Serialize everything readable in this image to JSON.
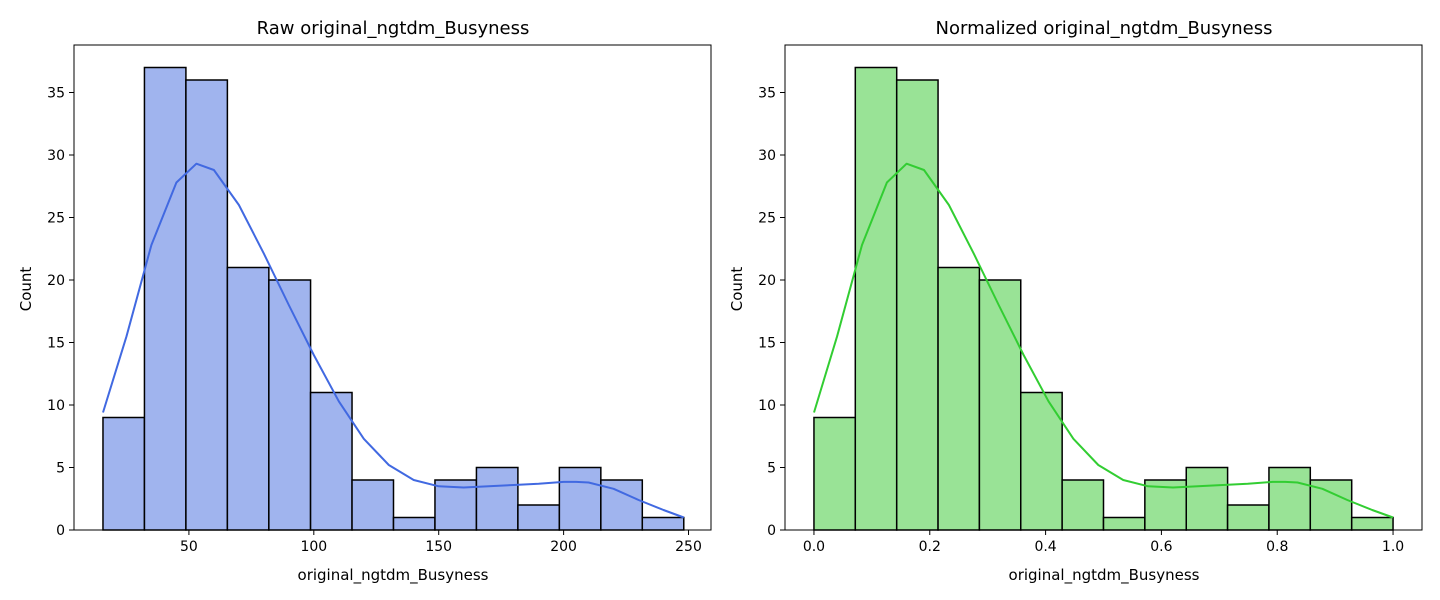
{
  "chart_data": [
    {
      "type": "bar",
      "subtype": "histogram_with_kde",
      "title": "Raw original_ngtdm_Busyness",
      "xlabel": "original_ngtdm_Busyness",
      "ylabel": "Count",
      "xlim": [
        4,
        259
      ],
      "ylim": [
        0,
        38.8
      ],
      "xticks": [
        50,
        100,
        150,
        200,
        250
      ],
      "xtick_labels": [
        "50",
        "100",
        "150",
        "200",
        "250"
      ],
      "yticks": [
        0,
        5,
        10,
        15,
        20,
        25,
        30,
        35
      ],
      "ytick_labels": [
        "0",
        "5",
        "10",
        "15",
        "20",
        "25",
        "30",
        "35"
      ],
      "bin_edges": [
        15.6,
        32.2,
        48.8,
        65.4,
        82.0,
        98.7,
        115.3,
        131.9,
        148.5,
        165.1,
        181.7,
        198.3,
        214.9,
        231.5,
        248.1
      ],
      "counts": [
        9,
        37,
        36,
        21,
        20,
        11,
        4,
        1,
        4,
        5,
        2,
        5,
        4,
        1
      ],
      "kde": {
        "x": [
          15.6,
          25,
          35,
          45,
          53,
          60,
          70,
          80,
          90,
          100,
          110,
          120,
          130,
          140,
          150,
          160,
          170,
          180,
          190,
          200,
          205,
          210,
          220,
          230,
          240,
          248.1
        ],
        "y": [
          9.4,
          15.5,
          22.8,
          27.8,
          29.3,
          28.8,
          26.0,
          22.1,
          18.0,
          14.0,
          10.3,
          7.3,
          5.2,
          4.0,
          3.5,
          3.4,
          3.5,
          3.6,
          3.7,
          3.85,
          3.85,
          3.8,
          3.3,
          2.4,
          1.6,
          1.0
        ]
      },
      "colors": {
        "bar_fill": "#a0b4ee",
        "bar_edge": "#000000",
        "kde_line": "#4169e1"
      },
      "grid": false,
      "legend": false
    },
    {
      "type": "bar",
      "subtype": "histogram_with_kde",
      "title": "Normalized original_ngtdm_Busyness",
      "xlabel": "original_ngtdm_Busyness",
      "ylabel": "Count",
      "xlim": [
        -0.05,
        1.05
      ],
      "ylim": [
        0,
        38.8
      ],
      "xticks": [
        0.0,
        0.2,
        0.4,
        0.6,
        0.8,
        1.0
      ],
      "xtick_labels": [
        "0.0",
        "0.2",
        "0.4",
        "0.6",
        "0.8",
        "1.0"
      ],
      "yticks": [
        0,
        5,
        10,
        15,
        20,
        25,
        30,
        35
      ],
      "ytick_labels": [
        "0",
        "5",
        "10",
        "15",
        "20",
        "25",
        "30",
        "35"
      ],
      "bin_edges": [
        0.0,
        0.0714,
        0.1429,
        0.2143,
        0.2857,
        0.3571,
        0.4286,
        0.5,
        0.5714,
        0.6429,
        0.7143,
        0.7857,
        0.8571,
        0.9286,
        1.0
      ],
      "counts": [
        9,
        37,
        36,
        21,
        20,
        11,
        4,
        1,
        4,
        5,
        2,
        5,
        4,
        1
      ],
      "kde": {
        "x": [
          0.0,
          0.04,
          0.083,
          0.126,
          0.16,
          0.19,
          0.233,
          0.276,
          0.319,
          0.362,
          0.405,
          0.448,
          0.491,
          0.534,
          0.577,
          0.62,
          0.663,
          0.706,
          0.749,
          0.792,
          0.814,
          0.835,
          0.878,
          0.921,
          0.964,
          1.0
        ],
        "y": [
          9.4,
          15.5,
          22.8,
          27.8,
          29.3,
          28.8,
          26.0,
          22.1,
          18.0,
          14.0,
          10.3,
          7.3,
          5.2,
          4.0,
          3.5,
          3.4,
          3.5,
          3.6,
          3.7,
          3.85,
          3.85,
          3.8,
          3.3,
          2.4,
          1.6,
          1.0
        ]
      },
      "colors": {
        "bar_fill": "#99e396",
        "bar_edge": "#000000",
        "kde_line": "#32cd32"
      },
      "grid": false,
      "legend": false
    }
  ]
}
